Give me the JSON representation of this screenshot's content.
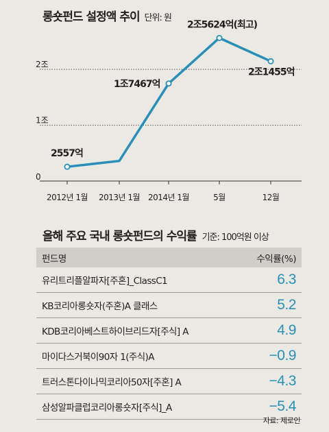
{
  "title": "롱숏펀드 설정액 추이",
  "unit": "단위: 원",
  "chart_data": [
    {
      "type": "line",
      "title": "롱숏펀드 설정액 추이",
      "unit_label": "단위: 원",
      "x": [
        "2012년 1월",
        "2013년 1월",
        "2014년 1월",
        "5월",
        "12월"
      ],
      "y_text": [
        "2557억",
        "",
        "1조7467억",
        "2조5624억",
        "2조1455억"
      ],
      "y": [
        2557,
        3600,
        17467,
        25624,
        21455
      ],
      "y_unit": "억원",
      "point_labels": [
        "2557억",
        "",
        "1조7467억",
        "2조5624억(최고)",
        "2조1455억"
      ],
      "marked_points": [
        0,
        2,
        3,
        4
      ],
      "y_ticks": [
        {
          "label": "0",
          "value": 0
        },
        {
          "label": "1조",
          "value": 10000
        },
        {
          "label": "2조",
          "value": 20000
        }
      ],
      "ylim": [
        0,
        28000
      ],
      "grid": "dotted horizontal",
      "line_color": "#2a8fb8",
      "marker_fill": "#ffffff"
    },
    {
      "type": "table",
      "title": "올해 주요 국내 롱숏펀드의 수익률",
      "subtitle": "기준: 100억원 이상",
      "columns": [
        "펀드명",
        "수익률(%)"
      ],
      "rows": [
        {
          "name": "유리트리플알파자[주혼]_ClassC1",
          "value": 6.3,
          "value_text": "6.3"
        },
        {
          "name": "KB코리아롱숏자(주혼)A 클래스",
          "value": 5.2,
          "value_text": "5.2"
        },
        {
          "name": "KDB코리아베스트하이브리드자[주식] A",
          "value": 4.9,
          "value_text": "4.9"
        },
        {
          "name": "마이다스거북이90자 1(주식)A",
          "value": -0.9,
          "value_text": "−0.9"
        },
        {
          "name": "트러스톤다이나믹코리아50자[주혼] A",
          "value": -4.3,
          "value_text": "−4.3"
        },
        {
          "name": "삼성알파클럽코리아롱숏자[주식]_A",
          "value": -5.4,
          "value_text": "−5.4"
        }
      ],
      "value_color": "#2a8fb8",
      "header_bg": "#d0cec9"
    }
  ],
  "source": "자료: 제로인"
}
